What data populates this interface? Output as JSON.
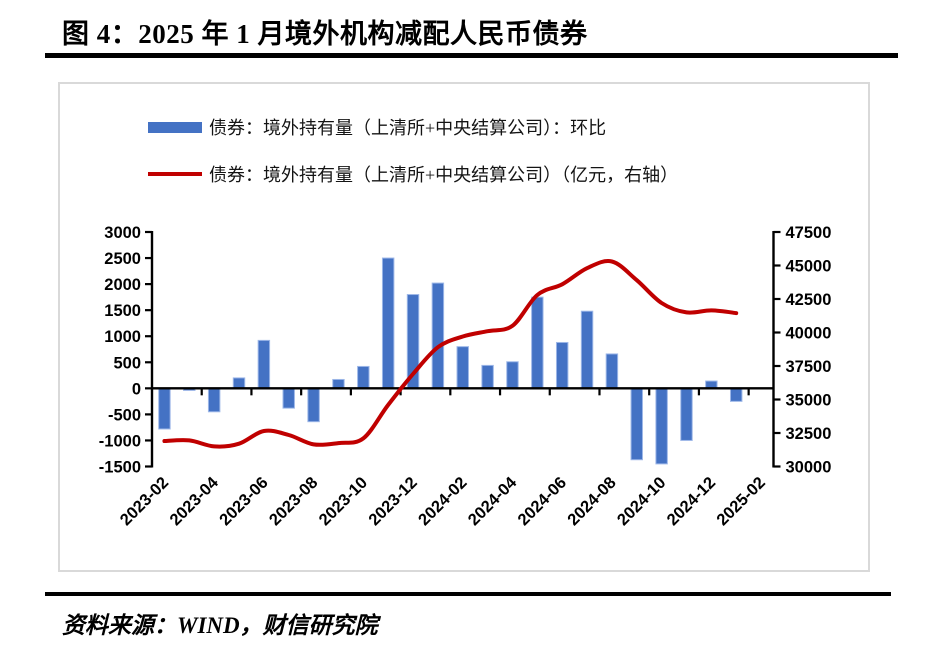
{
  "figure": {
    "title": "图 4：2025 年 1 月境外机构减配人民币债券"
  },
  "legend": {
    "items": [
      {
        "label": "债券：境外持有量（上清所+中央结算公司）：环比",
        "swatch": "bar",
        "color": "#4472C4"
      },
      {
        "label": "债券：境外持有量（上清所+中央结算公司）（亿元，右轴）",
        "swatch": "line",
        "color": "#C00000"
      }
    ]
  },
  "footer": {
    "source": "资料来源：WIND，财信研究院"
  },
  "chart_data": {
    "type": "combo",
    "title": "图 4：2025 年 1 月境外机构减配人民币债券",
    "x": [
      "2023-02",
      "2023-03",
      "2023-04",
      "2023-05",
      "2023-06",
      "2023-07",
      "2023-08",
      "2023-09",
      "2023-10",
      "2023-11",
      "2023-12",
      "2024-01",
      "2024-02",
      "2024-03",
      "2024-04",
      "2024-05",
      "2024-06",
      "2024-07",
      "2024-08",
      "2024-09",
      "2024-10",
      "2024-11",
      "2024-12",
      "2025-01"
    ],
    "x_slots": 25,
    "x_tick_every": 2,
    "x_tick_labels": [
      "2023-02",
      "2023-04",
      "2023-06",
      "2023-08",
      "2023-10",
      "2023-12",
      "2024-02",
      "2024-04",
      "2024-06",
      "2024-08",
      "2024-10",
      "2024-12",
      "2025-02"
    ],
    "series": [
      {
        "name": "债券：境外持有量（上清所+中央结算公司）：环比",
        "type": "bar",
        "axis": "left",
        "color": "#4472C4",
        "edge_color": "#9db7e8",
        "values": [
          -780,
          -40,
          -450,
          200,
          920,
          -380,
          -640,
          170,
          420,
          2500,
          1800,
          2020,
          800,
          440,
          510,
          1750,
          880,
          1480,
          660,
          -1370,
          -1450,
          -1000,
          140,
          -250
        ]
      },
      {
        "name": "债券：境外持有量（上清所+中央结算公司）（亿元，右轴）",
        "type": "line",
        "axis": "right",
        "color": "#C00000",
        "values": [
          31900,
          31950,
          31500,
          31700,
          32650,
          32350,
          31650,
          31750,
          32100,
          34600,
          36900,
          38900,
          39700,
          40100,
          40500,
          42800,
          43600,
          44800,
          45300,
          43900,
          42200,
          41500,
          41650,
          41450
        ]
      }
    ],
    "left_axis": {
      "min": -1500,
      "max": 3000,
      "step": 500,
      "ticks": [
        3000,
        2500,
        2000,
        1500,
        1000,
        500,
        0,
        -500,
        -1000,
        -1500
      ]
    },
    "right_axis": {
      "min": 30000,
      "max": 47500,
      "step": 2500,
      "ticks": [
        47500,
        45000,
        42500,
        40000,
        37500,
        35000,
        32500,
        30000
      ]
    },
    "legend_position": "top-left",
    "grid": false
  }
}
